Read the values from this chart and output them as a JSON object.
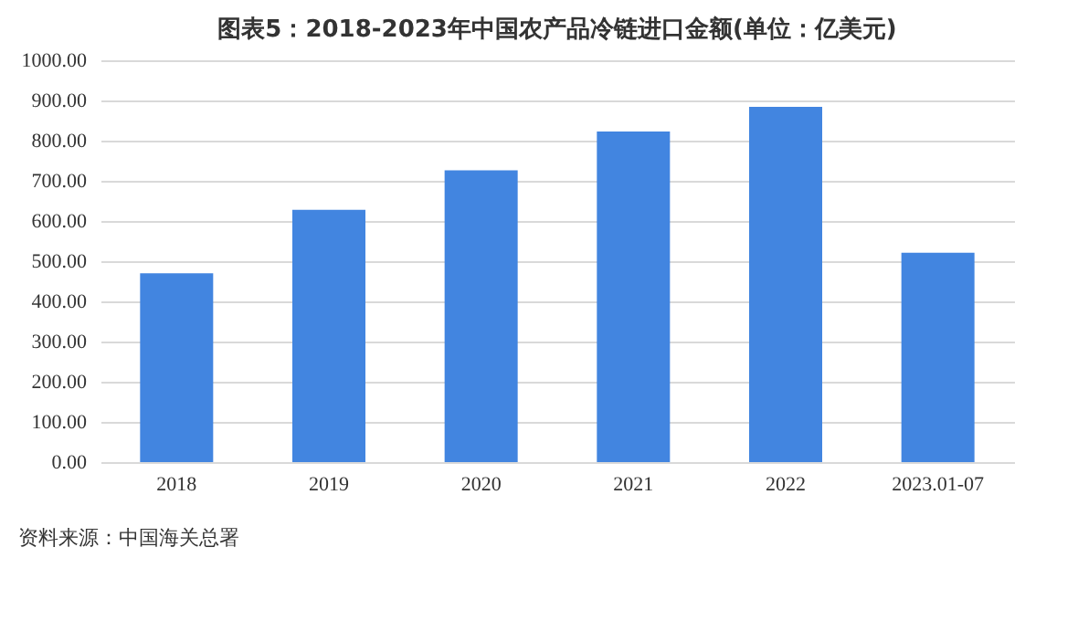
{
  "chart_data": {
    "type": "bar",
    "title": "图表5：2018-2023年中国农产品冷链进口金额(单位：亿美元)",
    "categories": [
      "2018",
      "2019",
      "2020",
      "2021",
      "2022",
      "2023.01-07"
    ],
    "values": [
      470,
      628,
      726,
      823,
      884,
      521
    ],
    "color": "#4285e0",
    "ylim": [
      0,
      1000
    ],
    "yticks": [
      {
        "value": 0,
        "label": "0.00"
      },
      {
        "value": 100,
        "label": "100.00"
      },
      {
        "value": 200,
        "label": "200.00"
      },
      {
        "value": 300,
        "label": "300.00"
      },
      {
        "value": 400,
        "label": "400.00"
      },
      {
        "value": 500,
        "label": "500.00"
      },
      {
        "value": 600,
        "label": "600.00"
      },
      {
        "value": 700,
        "label": "700.00"
      },
      {
        "value": 800,
        "label": "800.00"
      },
      {
        "value": 900,
        "label": "900.00"
      },
      {
        "value": 1000,
        "label": "1000.00"
      }
    ],
    "grid": "y",
    "annotations": [
      "资料来源：中国海关总署"
    ]
  }
}
